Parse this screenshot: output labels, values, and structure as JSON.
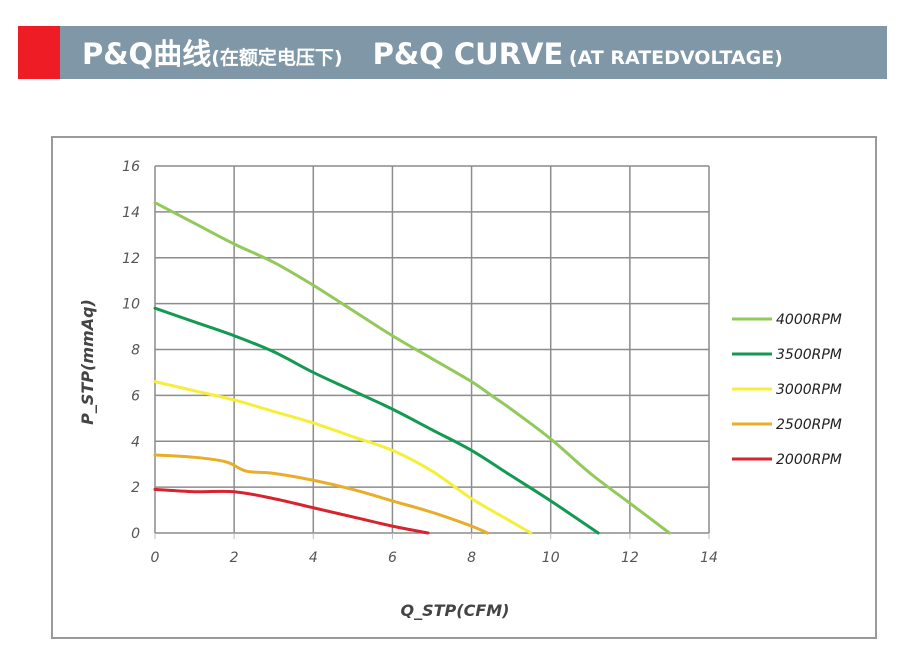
{
  "header": {
    "cn_main": "P&Q曲线",
    "cn_sub": "(在额定电压下)",
    "en_main": "P&Q CURVE",
    "en_sub": "(AT RATEDVOLTAGE)",
    "accent_color": "#ee1c25",
    "bar_color": "#7f97a6"
  },
  "chart_data": {
    "type": "line",
    "title": "P&Q CURVE (AT RATEDVOLTAGE)",
    "xlabel": "Q_STP(CFM)",
    "ylabel": "P_STP(mmAq)",
    "xlim": [
      0,
      14
    ],
    "ylim": [
      0,
      16
    ],
    "xticks": [
      "0",
      "2",
      "4",
      "6",
      "8",
      "10",
      "12",
      "14"
    ],
    "yticks": [
      "0",
      "2",
      "4",
      "6",
      "8",
      "10",
      "12",
      "14",
      "16"
    ],
    "grid": true,
    "legend_position": "right",
    "series": [
      {
        "name": "4000RPM",
        "color": "#92c95a",
        "x": [
          0,
          1,
          2,
          3,
          4,
          5,
          6,
          7,
          8,
          8.5,
          9,
          10,
          11,
          12,
          13
        ],
        "y": [
          14.4,
          13.5,
          12.6,
          11.8,
          10.8,
          9.7,
          8.6,
          7.6,
          6.6,
          6.0,
          5.4,
          4.1,
          2.6,
          1.3,
          0
        ]
      },
      {
        "name": "3500RPM",
        "color": "#139a52",
        "x": [
          0,
          1,
          2,
          3,
          4,
          5,
          6,
          7,
          8,
          9,
          10,
          11.2
        ],
        "y": [
          9.8,
          9.2,
          8.6,
          7.9,
          7.0,
          6.2,
          5.4,
          4.5,
          3.6,
          2.5,
          1.4,
          0
        ]
      },
      {
        "name": "3000RPM",
        "color": "#f5ef3a",
        "x": [
          0,
          1,
          2,
          3,
          4,
          5,
          6,
          7,
          8,
          9,
          9.5
        ],
        "y": [
          6.6,
          6.2,
          5.8,
          5.3,
          4.8,
          4.2,
          3.6,
          2.7,
          1.5,
          0.5,
          0
        ]
      },
      {
        "name": "2500RPM",
        "color": "#e9ad2a",
        "x": [
          0,
          1,
          1.8,
          2.3,
          3,
          4,
          5,
          6,
          7,
          8,
          8.4
        ],
        "y": [
          3.4,
          3.3,
          3.1,
          2.7,
          2.6,
          2.3,
          1.9,
          1.4,
          0.9,
          0.3,
          0
        ]
      },
      {
        "name": "2000RPM",
        "color": "#d7232e",
        "x": [
          0,
          1,
          2,
          3,
          4,
          5,
          6,
          6.9
        ],
        "y": [
          1.9,
          1.8,
          1.8,
          1.5,
          1.1,
          0.7,
          0.3,
          0
        ]
      }
    ]
  }
}
